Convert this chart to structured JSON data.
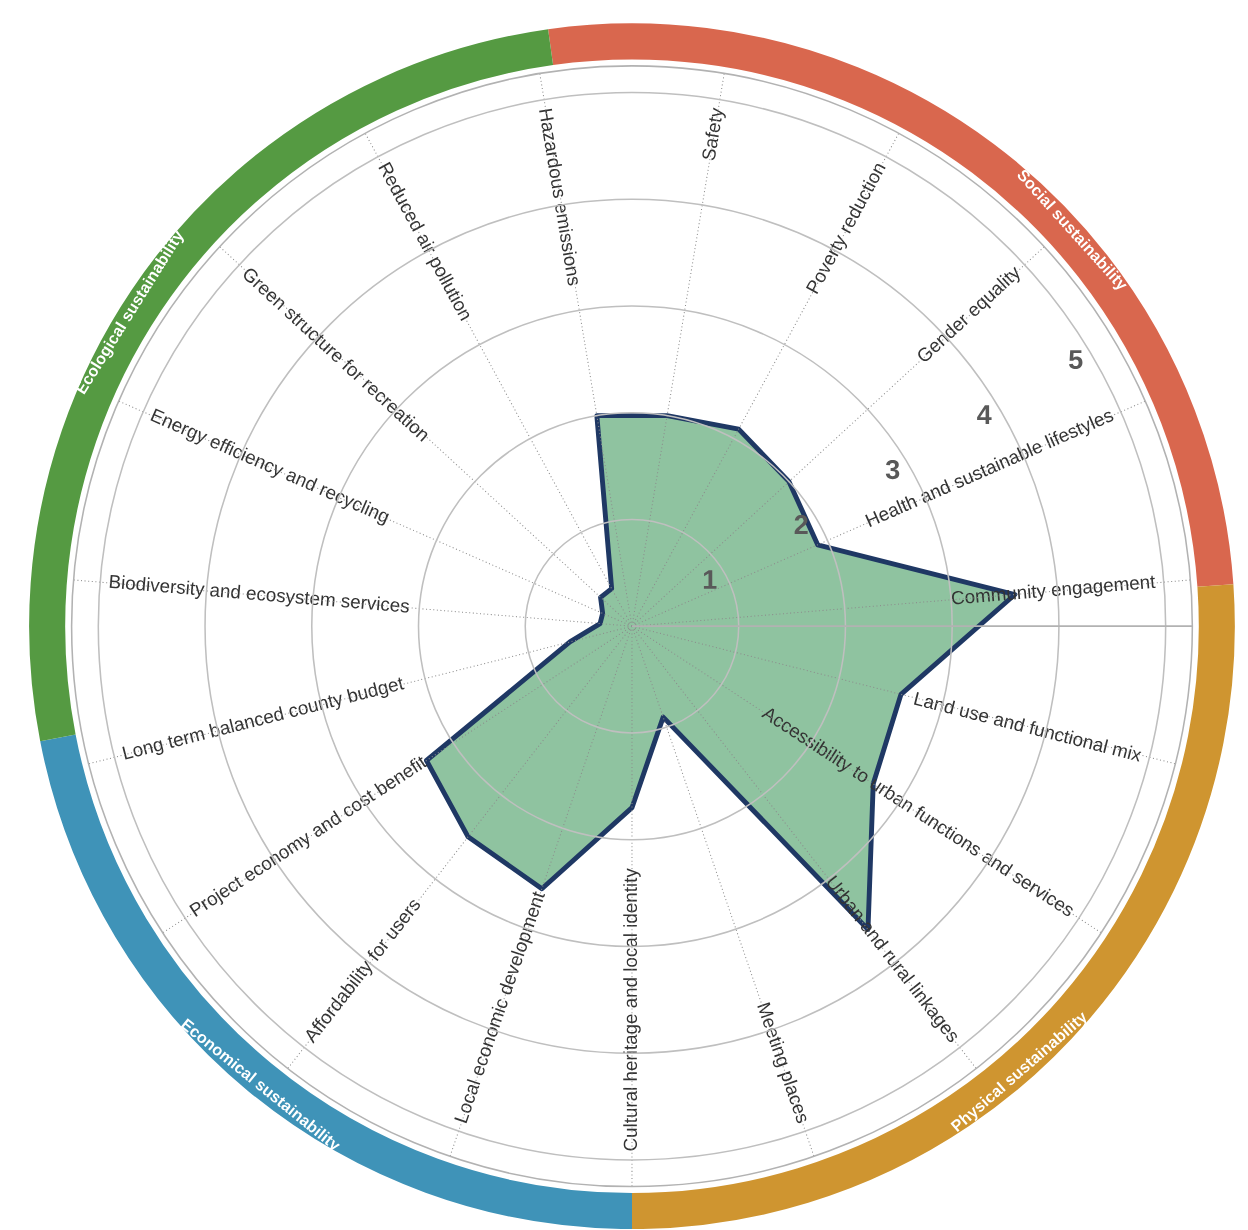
{
  "chart_data": {
    "type": "radar",
    "categories": [
      "Safety",
      "Poverty reduction",
      "Gender equality",
      "Health and sustainable lifestyles",
      "Community engagement",
      "Land use and functional mix",
      "Accessibility to urban functions and services",
      "Urban and rural linkages",
      "Meeting places",
      "Cultural heritage and local identity",
      "Local economic development",
      "Affordability for users",
      "Project economy and cost benefit",
      "Long term balanced county budget",
      "Biodiversity and ecosystem services",
      "Energy efficiency and recycling",
      "Green structure for recreation",
      "Reduced air pollution",
      "Hazardous emissions"
    ],
    "series": [
      {
        "color": "#8fc3a0",
        "values": [
          2.0,
          2.1,
          2.0,
          1.9,
          3.6,
          2.6,
          2.7,
          3.6,
          0.9,
          1.7,
          2.6,
          2.5,
          2.3,
          0.6,
          0.3,
          0.3,
          0.4,
          0.4,
          2.0
        ]
      }
    ],
    "ylim": [
      0,
      5.25
    ],
    "yticks": [
      1,
      2,
      3,
      4,
      5
    ],
    "grid": true,
    "annotations": [
      "Social sustainability",
      "Physical sustainability",
      "Economical sustainability",
      "Ecological sustainability"
    ]
  }
}
